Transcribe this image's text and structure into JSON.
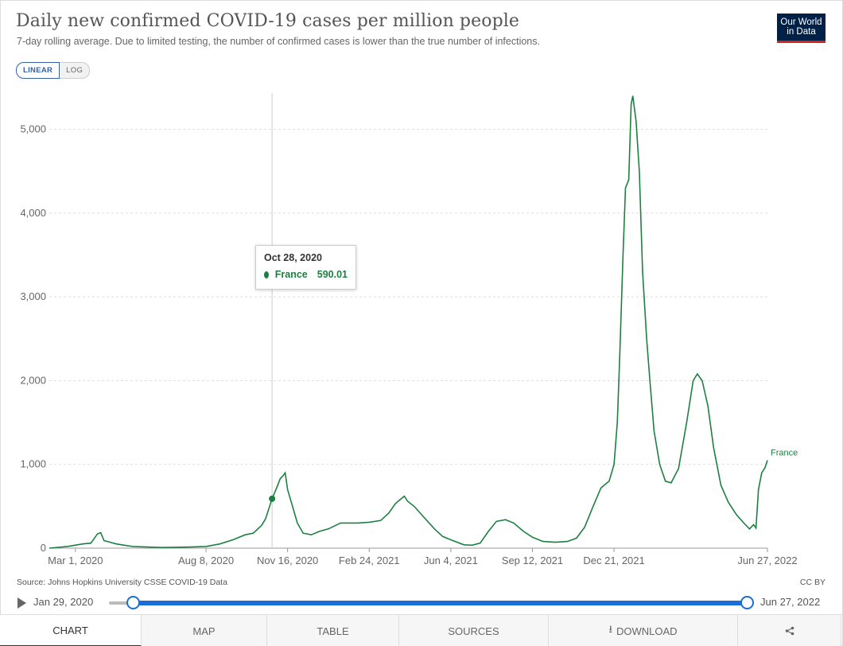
{
  "header": {
    "title": "Daily new confirmed COVID-19 cases per million people",
    "subtitle": "7-day rolling average. Due to limited testing, the number of confirmed cases is lower than the true number of infections.",
    "logo_line1": "Our World",
    "logo_line2": "in Data"
  },
  "scale_toggle": {
    "linear_label": "LINEAR",
    "log_label": "LOG",
    "selected": "LINEAR"
  },
  "tooltip": {
    "date": "Oct 28, 2020",
    "series": "France",
    "value": "590.01"
  },
  "footer": {
    "source": "Source: Johns Hopkins University CSSE COVID-19 Data",
    "license": "CC BY"
  },
  "timeline": {
    "start": "Jan 29, 2020",
    "end": "Jun 27, 2022"
  },
  "tabs": {
    "chart": "CHART",
    "map": "MAP",
    "table": "TABLE",
    "sources": "SOURCES",
    "download": "DOWNLOAD",
    "share": "share"
  },
  "colors": {
    "series": "#1d8041",
    "accent": "#1a6fd6",
    "logo_bg": "#002147",
    "logo_bar": "#ce261e"
  },
  "chart_data": {
    "type": "line",
    "title": "Daily new confirmed COVID-19 cases per million people",
    "xlabel": "",
    "ylabel": "",
    "ylim": [
      0,
      5500
    ],
    "xlim": [
      "2020-01-29",
      "2022-06-27"
    ],
    "y_ticks": [
      0,
      1000,
      2000,
      3000,
      4000,
      5000
    ],
    "y_tick_labels": [
      "0",
      "1,000",
      "2,000",
      "3,000",
      "4,000",
      "5,000"
    ],
    "x_ticks": [
      "2020-03-01",
      "2020-08-08",
      "2020-11-16",
      "2021-02-24",
      "2021-06-04",
      "2021-09-12",
      "2021-12-21",
      "2022-06-27"
    ],
    "x_tick_labels": [
      "Mar 1, 2020",
      "Aug 8, 2020",
      "Nov 16, 2020",
      "Feb 24, 2021",
      "Jun 4, 2021",
      "Sep 12, 2021",
      "Dec 21, 2021",
      "Jun 27, 2022"
    ],
    "grid": "horizontal dashed",
    "legend": "end-of-line label",
    "hover_marker": {
      "x": "2020-10-28",
      "y": 590.01
    },
    "series": [
      {
        "name": "France",
        "color": "#1d8041",
        "points": [
          [
            "2020-01-29",
            0
          ],
          [
            "2020-02-20",
            20
          ],
          [
            "2020-03-10",
            50
          ],
          [
            "2020-03-20",
            60
          ],
          [
            "2020-03-28",
            170
          ],
          [
            "2020-04-01",
            185
          ],
          [
            "2020-04-05",
            90
          ],
          [
            "2020-04-20",
            50
          ],
          [
            "2020-05-10",
            20
          ],
          [
            "2020-06-15",
            8
          ],
          [
            "2020-07-15",
            12
          ],
          [
            "2020-08-08",
            20
          ],
          [
            "2020-08-25",
            50
          ],
          [
            "2020-09-10",
            100
          ],
          [
            "2020-09-25",
            160
          ],
          [
            "2020-10-05",
            180
          ],
          [
            "2020-10-15",
            270
          ],
          [
            "2020-10-20",
            350
          ],
          [
            "2020-10-28",
            590
          ],
          [
            "2020-11-03",
            730
          ],
          [
            "2020-11-07",
            830
          ],
          [
            "2020-11-10",
            860
          ],
          [
            "2020-11-13",
            900
          ],
          [
            "2020-11-16",
            700
          ],
          [
            "2020-11-22",
            500
          ],
          [
            "2020-11-28",
            300
          ],
          [
            "2020-12-05",
            180
          ],
          [
            "2020-12-15",
            160
          ],
          [
            "2020-12-25",
            200
          ],
          [
            "2021-01-05",
            230
          ],
          [
            "2021-01-20",
            300
          ],
          [
            "2021-02-10",
            300
          ],
          [
            "2021-02-24",
            310
          ],
          [
            "2021-03-10",
            330
          ],
          [
            "2021-03-20",
            420
          ],
          [
            "2021-03-28",
            530
          ],
          [
            "2021-04-03",
            580
          ],
          [
            "2021-04-08",
            620
          ],
          [
            "2021-04-12",
            560
          ],
          [
            "2021-04-20",
            500
          ],
          [
            "2021-05-01",
            380
          ],
          [
            "2021-05-15",
            230
          ],
          [
            "2021-05-25",
            140
          ],
          [
            "2021-06-04",
            100
          ],
          [
            "2021-06-20",
            40
          ],
          [
            "2021-06-30",
            35
          ],
          [
            "2021-07-10",
            60
          ],
          [
            "2021-07-20",
            200
          ],
          [
            "2021-07-30",
            320
          ],
          [
            "2021-08-10",
            340
          ],
          [
            "2021-08-20",
            300
          ],
          [
            "2021-09-01",
            200
          ],
          [
            "2021-09-12",
            130
          ],
          [
            "2021-09-25",
            80
          ],
          [
            "2021-10-10",
            70
          ],
          [
            "2021-10-25",
            80
          ],
          [
            "2021-11-05",
            120
          ],
          [
            "2021-11-15",
            250
          ],
          [
            "2021-11-25",
            490
          ],
          [
            "2021-12-05",
            720
          ],
          [
            "2021-12-15",
            800
          ],
          [
            "2021-12-21",
            1000
          ],
          [
            "2021-12-25",
            1500
          ],
          [
            "2021-12-28",
            2300
          ],
          [
            "2022-01-01",
            3500
          ],
          [
            "2022-01-04",
            4300
          ],
          [
            "2022-01-08",
            4400
          ],
          [
            "2022-01-11",
            5300
          ],
          [
            "2022-01-13",
            5400
          ],
          [
            "2022-01-17",
            5100
          ],
          [
            "2022-01-21",
            4500
          ],
          [
            "2022-01-25",
            3300
          ],
          [
            "2022-01-30",
            2500
          ],
          [
            "2022-02-03",
            2000
          ],
          [
            "2022-02-08",
            1400
          ],
          [
            "2022-02-15",
            1000
          ],
          [
            "2022-02-22",
            800
          ],
          [
            "2022-03-01",
            780
          ],
          [
            "2022-03-10",
            950
          ],
          [
            "2022-03-20",
            1500
          ],
          [
            "2022-03-28",
            2000
          ],
          [
            "2022-04-02",
            2080
          ],
          [
            "2022-04-08",
            2000
          ],
          [
            "2022-04-15",
            1700
          ],
          [
            "2022-04-22",
            1200
          ],
          [
            "2022-05-01",
            750
          ],
          [
            "2022-05-10",
            550
          ],
          [
            "2022-05-20",
            400
          ],
          [
            "2022-05-30",
            290
          ],
          [
            "2022-06-05",
            230
          ],
          [
            "2022-06-10",
            280
          ],
          [
            "2022-06-13",
            240
          ],
          [
            "2022-06-16",
            700
          ],
          [
            "2022-06-20",
            900
          ],
          [
            "2022-06-24",
            960
          ],
          [
            "2022-06-27",
            1050
          ]
        ]
      }
    ]
  }
}
